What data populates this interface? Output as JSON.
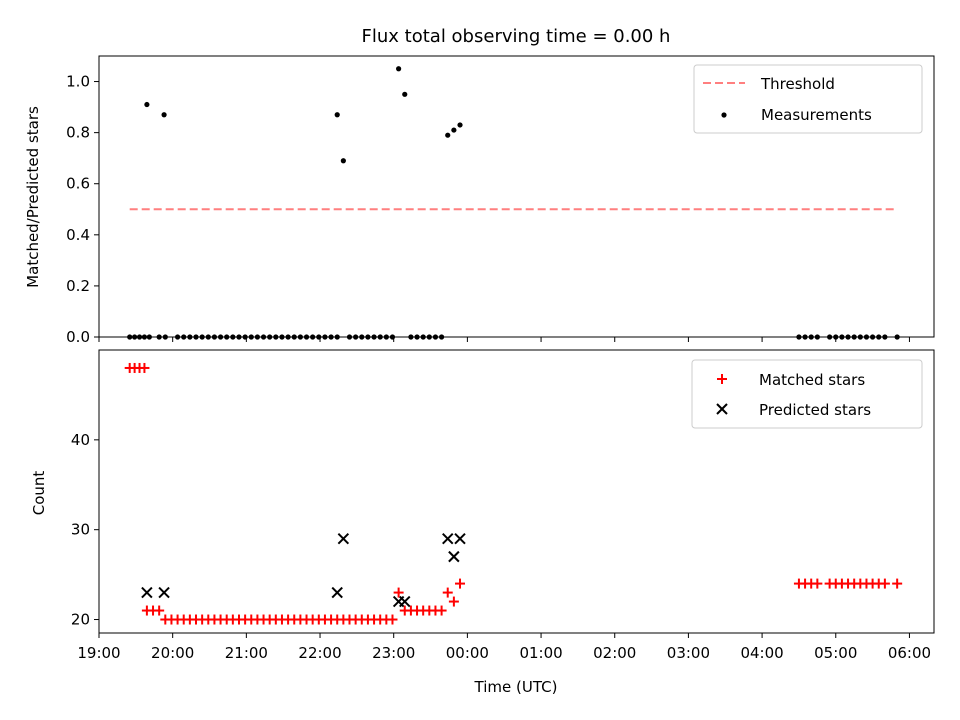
{
  "chart_data": [
    {
      "type": "scatter",
      "title": "Flux total observing time = 0.00 h",
      "xlabel": "",
      "ylabel": "Matched/Predicted stars",
      "xlim": [
        "19:00",
        "06:20"
      ],
      "ylim": [
        0,
        1.1
      ],
      "yticks": [
        "0.0",
        "0.2",
        "0.4",
        "0.6",
        "0.8",
        "1.0"
      ],
      "legend_position": "top-right",
      "grid": false,
      "threshold": {
        "name": "Threshold",
        "value": 0.5,
        "x_start": "19:25",
        "x_end": "05:50",
        "color": "#ff7f7f",
        "style": "dashed"
      },
      "series": [
        {
          "name": "Measurements",
          "color": "#000000",
          "marker": "dot",
          "points": [
            [
              "19:25",
              0
            ],
            [
              "19:29",
              0
            ],
            [
              "19:33",
              0
            ],
            [
              "19:37",
              0
            ],
            [
              "19:41",
              0
            ],
            [
              "19:49",
              0
            ],
            [
              "19:54",
              0
            ],
            [
              "20:04",
              0
            ],
            [
              "20:09",
              0
            ],
            [
              "20:14",
              0
            ],
            [
              "20:19",
              0
            ],
            [
              "20:24",
              0
            ],
            [
              "20:29",
              0
            ],
            [
              "20:34",
              0
            ],
            [
              "20:39",
              0
            ],
            [
              "20:44",
              0
            ],
            [
              "20:49",
              0
            ],
            [
              "20:54",
              0
            ],
            [
              "20:59",
              0
            ],
            [
              "21:04",
              0
            ],
            [
              "21:09",
              0
            ],
            [
              "21:14",
              0
            ],
            [
              "21:19",
              0
            ],
            [
              "21:24",
              0
            ],
            [
              "21:29",
              0
            ],
            [
              "21:34",
              0
            ],
            [
              "21:39",
              0
            ],
            [
              "21:44",
              0
            ],
            [
              "21:49",
              0
            ],
            [
              "21:54",
              0
            ],
            [
              "21:59",
              0
            ],
            [
              "22:04",
              0
            ],
            [
              "22:09",
              0
            ],
            [
              "22:14",
              0
            ],
            [
              "22:24",
              0
            ],
            [
              "22:29",
              0
            ],
            [
              "22:34",
              0
            ],
            [
              "22:39",
              0
            ],
            [
              "22:44",
              0
            ],
            [
              "22:49",
              0
            ],
            [
              "22:54",
              0
            ],
            [
              "22:59",
              0
            ],
            [
              "23:14",
              0
            ],
            [
              "23:19",
              0
            ],
            [
              "23:24",
              0
            ],
            [
              "23:29",
              0
            ],
            [
              "23:34",
              0
            ],
            [
              "23:39",
              0
            ],
            [
              "19:39",
              0.91
            ],
            [
              "19:53",
              0.87
            ],
            [
              "22:14",
              0.87
            ],
            [
              "22:19",
              0.69
            ],
            [
              "23:04",
              1.05
            ],
            [
              "23:09",
              0.95
            ],
            [
              "23:44",
              0.79
            ],
            [
              "23:49",
              0.81
            ],
            [
              "23:54",
              0.83
            ],
            [
              "04:30",
              0
            ],
            [
              "04:35",
              0
            ],
            [
              "04:40",
              0
            ],
            [
              "04:45",
              0
            ],
            [
              "04:55",
              0
            ],
            [
              "05:00",
              0
            ],
            [
              "05:05",
              0
            ],
            [
              "05:10",
              0
            ],
            [
              "05:15",
              0
            ],
            [
              "05:20",
              0
            ],
            [
              "05:25",
              0
            ],
            [
              "05:30",
              0
            ],
            [
              "05:35",
              0
            ],
            [
              "05:40",
              0
            ],
            [
              "05:50",
              0
            ]
          ]
        }
      ]
    },
    {
      "type": "scatter",
      "title": "",
      "xlabel": "Time (UTC)",
      "ylabel": "Count",
      "xlim": [
        "19:00",
        "06:20"
      ],
      "ylim": [
        18.5,
        50
      ],
      "yticks": [
        "20",
        "30",
        "40"
      ],
      "xticks": [
        "19:00",
        "20:00",
        "21:00",
        "22:00",
        "23:00",
        "00:00",
        "01:00",
        "02:00",
        "03:00",
        "04:00",
        "05:00",
        "06:00"
      ],
      "legend_position": "top-right",
      "grid": false,
      "series": [
        {
          "name": "Matched stars",
          "color": "#ff0000",
          "marker": "plus",
          "points": [
            [
              "19:25",
              48
            ],
            [
              "19:29",
              48
            ],
            [
              "19:33",
              48
            ],
            [
              "19:37",
              48
            ],
            [
              "19:39",
              21
            ],
            [
              "19:44",
              21
            ],
            [
              "19:49",
              21
            ],
            [
              "19:54",
              20
            ],
            [
              "19:59",
              20
            ],
            [
              "20:04",
              20
            ],
            [
              "20:09",
              20
            ],
            [
              "20:14",
              20
            ],
            [
              "20:19",
              20
            ],
            [
              "20:24",
              20
            ],
            [
              "20:29",
              20
            ],
            [
              "20:34",
              20
            ],
            [
              "20:39",
              20
            ],
            [
              "20:44",
              20
            ],
            [
              "20:49",
              20
            ],
            [
              "20:54",
              20
            ],
            [
              "20:59",
              20
            ],
            [
              "21:04",
              20
            ],
            [
              "21:09",
              20
            ],
            [
              "21:14",
              20
            ],
            [
              "21:19",
              20
            ],
            [
              "21:24",
              20
            ],
            [
              "21:29",
              20
            ],
            [
              "21:34",
              20
            ],
            [
              "21:39",
              20
            ],
            [
              "21:44",
              20
            ],
            [
              "21:49",
              20
            ],
            [
              "21:54",
              20
            ],
            [
              "21:59",
              20
            ],
            [
              "22:04",
              20
            ],
            [
              "22:09",
              20
            ],
            [
              "22:14",
              20
            ],
            [
              "22:19",
              20
            ],
            [
              "22:24",
              20
            ],
            [
              "22:29",
              20
            ],
            [
              "22:34",
              20
            ],
            [
              "22:39",
              20
            ],
            [
              "22:44",
              20
            ],
            [
              "22:49",
              20
            ],
            [
              "22:54",
              20
            ],
            [
              "22:59",
              20
            ],
            [
              "23:04",
              23
            ],
            [
              "23:09",
              21
            ],
            [
              "23:14",
              21
            ],
            [
              "23:19",
              21
            ],
            [
              "23:24",
              21
            ],
            [
              "23:29",
              21
            ],
            [
              "23:34",
              21
            ],
            [
              "23:39",
              21
            ],
            [
              "23:44",
              23
            ],
            [
              "23:49",
              22
            ],
            [
              "23:54",
              24
            ],
            [
              "04:30",
              24
            ],
            [
              "04:35",
              24
            ],
            [
              "04:40",
              24
            ],
            [
              "04:45",
              24
            ],
            [
              "04:55",
              24
            ],
            [
              "05:00",
              24
            ],
            [
              "05:05",
              24
            ],
            [
              "05:10",
              24
            ],
            [
              "05:15",
              24
            ],
            [
              "05:20",
              24
            ],
            [
              "05:25",
              24
            ],
            [
              "05:30",
              24
            ],
            [
              "05:35",
              24
            ],
            [
              "05:40",
              24
            ],
            [
              "05:50",
              24
            ]
          ]
        },
        {
          "name": "Predicted stars",
          "color": "#000000",
          "marker": "x",
          "points": [
            [
              "19:39",
              23
            ],
            [
              "19:53",
              23
            ],
            [
              "22:14",
              23
            ],
            [
              "22:19",
              29
            ],
            [
              "23:04",
              22
            ],
            [
              "23:09",
              22
            ],
            [
              "23:44",
              29
            ],
            [
              "23:49",
              27
            ],
            [
              "23:54",
              29
            ]
          ]
        }
      ]
    }
  ]
}
